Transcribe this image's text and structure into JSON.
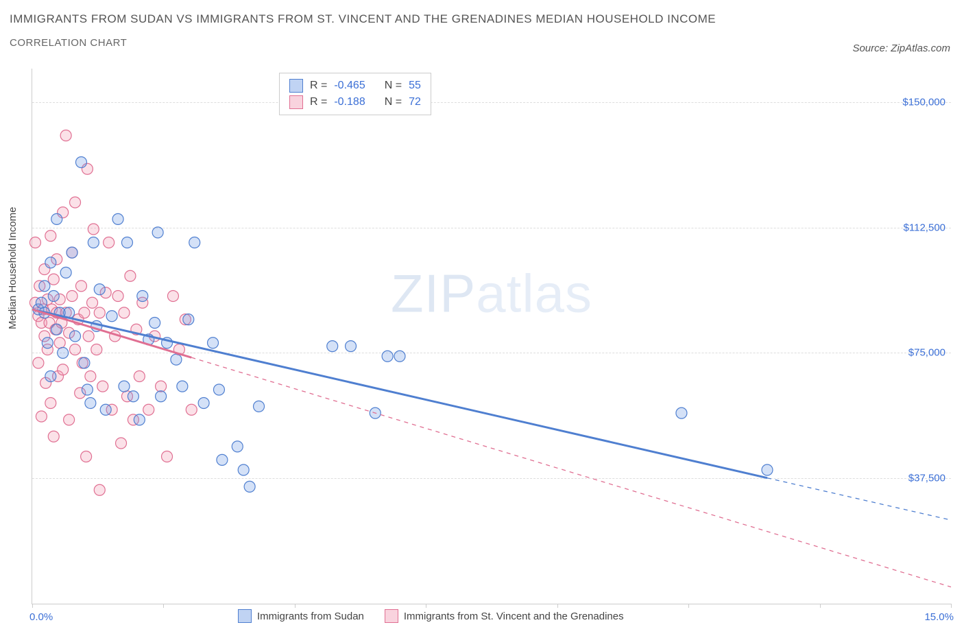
{
  "title": "IMMIGRANTS FROM SUDAN VS IMMIGRANTS FROM ST. VINCENT AND THE GRENADINES MEDIAN HOUSEHOLD INCOME",
  "subtitle": "CORRELATION CHART",
  "source": "Source: ZipAtlas.com",
  "watermark_a": "ZIP",
  "watermark_b": "atlas",
  "y_axis_label": "Median Household Income",
  "chart": {
    "type": "scatter-with-trend",
    "background_color": "#ffffff",
    "grid_color": "#dddddd",
    "axis_color": "#cccccc",
    "tick_label_color": "#3b6fd6",
    "xlim": [
      0,
      15
    ],
    "ylim": [
      0,
      160000
    ],
    "x_tick_positions": [
      0,
      2.14,
      4.29,
      6.43,
      8.57,
      10.71,
      12.86,
      15
    ],
    "x_edge_labels": {
      "min": "0.0%",
      "max": "15.0%"
    },
    "y_ticks": [
      {
        "v": 37500,
        "label": "$37,500"
      },
      {
        "v": 75000,
        "label": "$75,000"
      },
      {
        "v": 112500,
        "label": "$112,500"
      },
      {
        "v": 150000,
        "label": "$150,000"
      }
    ],
    "marker_radius": 8,
    "marker_stroke_width": 1.2,
    "marker_fill_opacity": 0.3,
    "trend_line_width_solid": 3,
    "trend_line_width_dash": 1.3,
    "trend_dash_pattern": "6,6"
  },
  "series": [
    {
      "key": "sudan",
      "label": "Immigrants from Sudan",
      "color": "#6f9ae3",
      "stroke": "#4f7fd0",
      "R": "-0.465",
      "N": "55",
      "trend": {
        "x1": 0,
        "y1": 88000,
        "x2": 15,
        "y2": 25000,
        "solid_until_x": 12.0
      },
      "points": [
        [
          0.1,
          88000
        ],
        [
          0.15,
          90000
        ],
        [
          0.2,
          87000
        ],
        [
          0.2,
          95000
        ],
        [
          0.25,
          78000
        ],
        [
          0.3,
          102000
        ],
        [
          0.3,
          68000
        ],
        [
          0.35,
          92000
        ],
        [
          0.4,
          115000
        ],
        [
          0.4,
          82000
        ],
        [
          0.45,
          87000
        ],
        [
          0.5,
          75000
        ],
        [
          0.55,
          99000
        ],
        [
          0.6,
          87000
        ],
        [
          0.65,
          105000
        ],
        [
          0.7,
          80000
        ],
        [
          0.8,
          132000
        ],
        [
          0.85,
          72000
        ],
        [
          0.9,
          64000
        ],
        [
          0.95,
          60000
        ],
        [
          1.0,
          108000
        ],
        [
          1.05,
          83000
        ],
        [
          1.1,
          94000
        ],
        [
          1.2,
          58000
        ],
        [
          1.3,
          86000
        ],
        [
          1.4,
          115000
        ],
        [
          1.5,
          65000
        ],
        [
          1.55,
          108000
        ],
        [
          1.65,
          62000
        ],
        [
          1.75,
          55000
        ],
        [
          1.8,
          92000
        ],
        [
          1.9,
          79000
        ],
        [
          2.0,
          84000
        ],
        [
          2.05,
          111000
        ],
        [
          2.1,
          62000
        ],
        [
          2.2,
          78000
        ],
        [
          2.35,
          73000
        ],
        [
          2.45,
          65000
        ],
        [
          2.55,
          85000
        ],
        [
          2.65,
          108000
        ],
        [
          2.8,
          60000
        ],
        [
          2.95,
          78000
        ],
        [
          3.05,
          64000
        ],
        [
          3.1,
          43000
        ],
        [
          3.35,
          47000
        ],
        [
          3.45,
          40000
        ],
        [
          3.55,
          35000
        ],
        [
          3.7,
          59000
        ],
        [
          4.9,
          77000
        ],
        [
          5.2,
          77000
        ],
        [
          5.6,
          57000
        ],
        [
          5.8,
          74000
        ],
        [
          6.0,
          74000
        ],
        [
          10.6,
          57000
        ],
        [
          12.0,
          40000
        ]
      ]
    },
    {
      "key": "stvincent",
      "label": "Immigrants from St. Vincent and the Grenadines",
      "color": "#f19ab3",
      "stroke": "#e06f92",
      "R": "-0.188",
      "N": "72",
      "trend": {
        "x1": 0,
        "y1": 88000,
        "x2": 15,
        "y2": 5000,
        "solid_until_x": 2.6
      },
      "points": [
        [
          0.05,
          90000
        ],
        [
          0.05,
          108000
        ],
        [
          0.1,
          86000
        ],
        [
          0.1,
          72000
        ],
        [
          0.12,
          95000
        ],
        [
          0.15,
          84000
        ],
        [
          0.15,
          56000
        ],
        [
          0.18,
          88000
        ],
        [
          0.2,
          100000
        ],
        [
          0.2,
          80000
        ],
        [
          0.22,
          66000
        ],
        [
          0.25,
          91000
        ],
        [
          0.25,
          76000
        ],
        [
          0.28,
          84000
        ],
        [
          0.3,
          110000
        ],
        [
          0.3,
          60000
        ],
        [
          0.32,
          88000
        ],
        [
          0.35,
          97000
        ],
        [
          0.35,
          50000
        ],
        [
          0.38,
          82000
        ],
        [
          0.4,
          87000
        ],
        [
          0.4,
          103000
        ],
        [
          0.42,
          68000
        ],
        [
          0.45,
          91000
        ],
        [
          0.45,
          78000
        ],
        [
          0.48,
          84000
        ],
        [
          0.5,
          117000
        ],
        [
          0.5,
          70000
        ],
        [
          0.55,
          87000
        ],
        [
          0.55,
          140000
        ],
        [
          0.6,
          81000
        ],
        [
          0.6,
          55000
        ],
        [
          0.65,
          92000
        ],
        [
          0.65,
          105000
        ],
        [
          0.7,
          76000
        ],
        [
          0.7,
          120000
        ],
        [
          0.75,
          85000
        ],
        [
          0.78,
          63000
        ],
        [
          0.8,
          95000
        ],
        [
          0.82,
          72000
        ],
        [
          0.85,
          87000
        ],
        [
          0.88,
          44000
        ],
        [
          0.9,
          130000
        ],
        [
          0.92,
          80000
        ],
        [
          0.95,
          68000
        ],
        [
          0.98,
          90000
        ],
        [
          1.0,
          112000
        ],
        [
          1.05,
          76000
        ],
        [
          1.1,
          87000
        ],
        [
          1.1,
          34000
        ],
        [
          1.15,
          65000
        ],
        [
          1.2,
          93000
        ],
        [
          1.25,
          108000
        ],
        [
          1.3,
          58000
        ],
        [
          1.35,
          80000
        ],
        [
          1.4,
          92000
        ],
        [
          1.45,
          48000
        ],
        [
          1.5,
          87000
        ],
        [
          1.55,
          62000
        ],
        [
          1.6,
          98000
        ],
        [
          1.65,
          55000
        ],
        [
          1.7,
          82000
        ],
        [
          1.75,
          68000
        ],
        [
          1.8,
          90000
        ],
        [
          1.9,
          58000
        ],
        [
          2.0,
          80000
        ],
        [
          2.1,
          65000
        ],
        [
          2.2,
          44000
        ],
        [
          2.3,
          92000
        ],
        [
          2.4,
          76000
        ],
        [
          2.5,
          85000
        ],
        [
          2.6,
          58000
        ]
      ]
    }
  ],
  "legend_top": {
    "r_label": "R =",
    "n_label": "N ="
  }
}
